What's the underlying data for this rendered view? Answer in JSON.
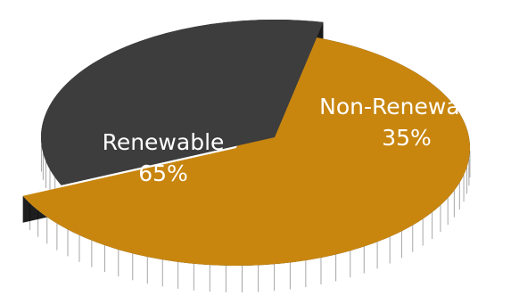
{
  "chart_data": {
    "type": "pie",
    "style": "3d-exploded",
    "slices": [
      {
        "label": "Renewable",
        "value": 65,
        "percent_label": "65%",
        "color": "#c8860f",
        "side_color": "#1e1e1e"
      },
      {
        "label": "Non-Renewable",
        "value": 35,
        "percent_label": "35%",
        "color": "#3d3d3d",
        "side_color": "#1a1a1a"
      }
    ],
    "title": "",
    "legend": "none"
  }
}
